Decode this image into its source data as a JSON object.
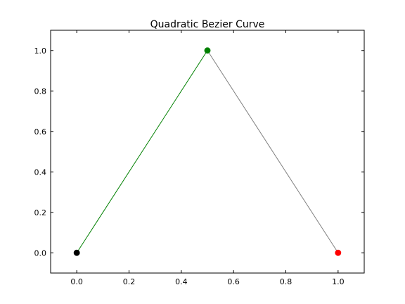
{
  "chart_data": {
    "type": "line",
    "title": "Quadratic Bezier Curve",
    "xlabel": "",
    "ylabel": "",
    "xlim": [
      -0.1,
      1.1
    ],
    "ylim": [
      -0.1,
      1.1
    ],
    "xticks": [
      0.0,
      0.2,
      0.4,
      0.6,
      0.8,
      1.0
    ],
    "yticks": [
      0.0,
      0.2,
      0.4,
      0.6,
      0.8,
      1.0
    ],
    "xtick_labels": [
      "0.0",
      "0.2",
      "0.4",
      "0.6",
      "0.8",
      "1.0"
    ],
    "ytick_labels": [
      "0.0",
      "0.2",
      "0.4",
      "0.6",
      "0.8",
      "1.0"
    ],
    "grid": false,
    "series": [
      {
        "x": [
          0.0,
          0.5
        ],
        "y": [
          0.0,
          1.0
        ],
        "color": "#008000",
        "marker": "none"
      },
      {
        "x": [
          0.5,
          1.0
        ],
        "y": [
          1.0,
          0.0
        ],
        "color": "#808080",
        "marker": "none"
      }
    ],
    "points": [
      {
        "x": 0.0,
        "y": 0.0,
        "color": "#000000"
      },
      {
        "x": 0.5,
        "y": 1.0,
        "color": "#008000"
      },
      {
        "x": 1.0,
        "y": 0.0,
        "color": "#ff0000"
      }
    ]
  }
}
